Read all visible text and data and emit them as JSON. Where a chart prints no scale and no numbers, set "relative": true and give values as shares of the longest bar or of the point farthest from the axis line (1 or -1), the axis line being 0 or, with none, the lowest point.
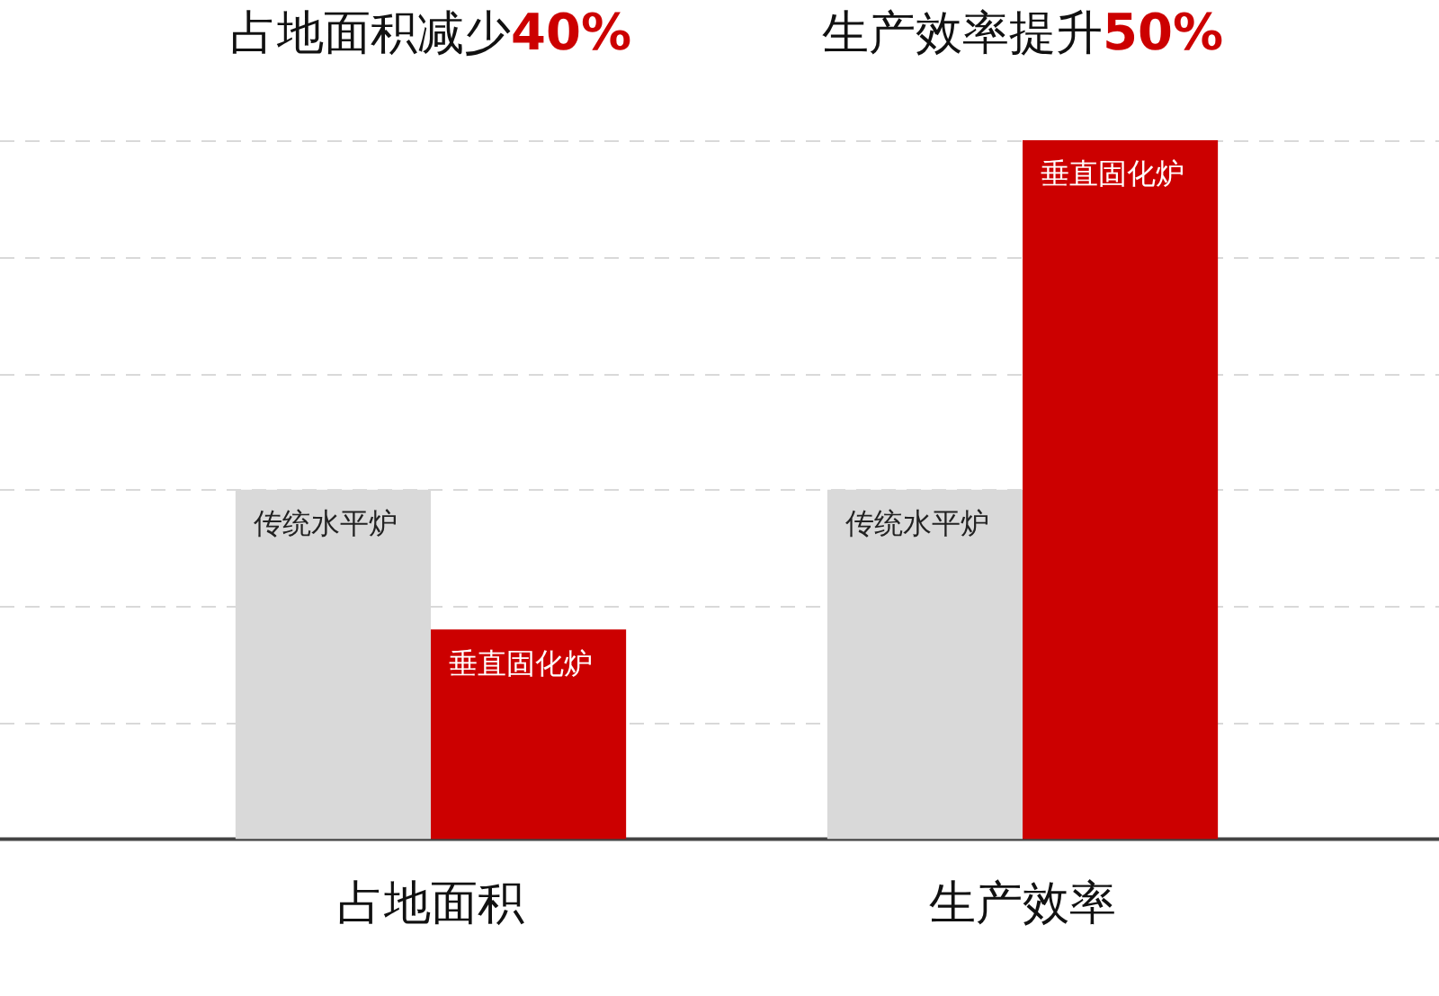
{
  "chart_data": {
    "type": "bar",
    "relative": true,
    "grid": "y",
    "legend": false,
    "categories": [
      "占地面积",
      "生产效率"
    ],
    "series": [
      {
        "name": "传统水平炉",
        "color": "#d9d9d9",
        "values": [
          0.5,
          0.5
        ]
      },
      {
        "name": "垂直固化炉",
        "color": "#cc0000",
        "values": [
          0.3,
          1
        ]
      }
    ],
    "annotations": [
      "占地面积减少40%",
      "生产效率提升50%"
    ]
  }
}
